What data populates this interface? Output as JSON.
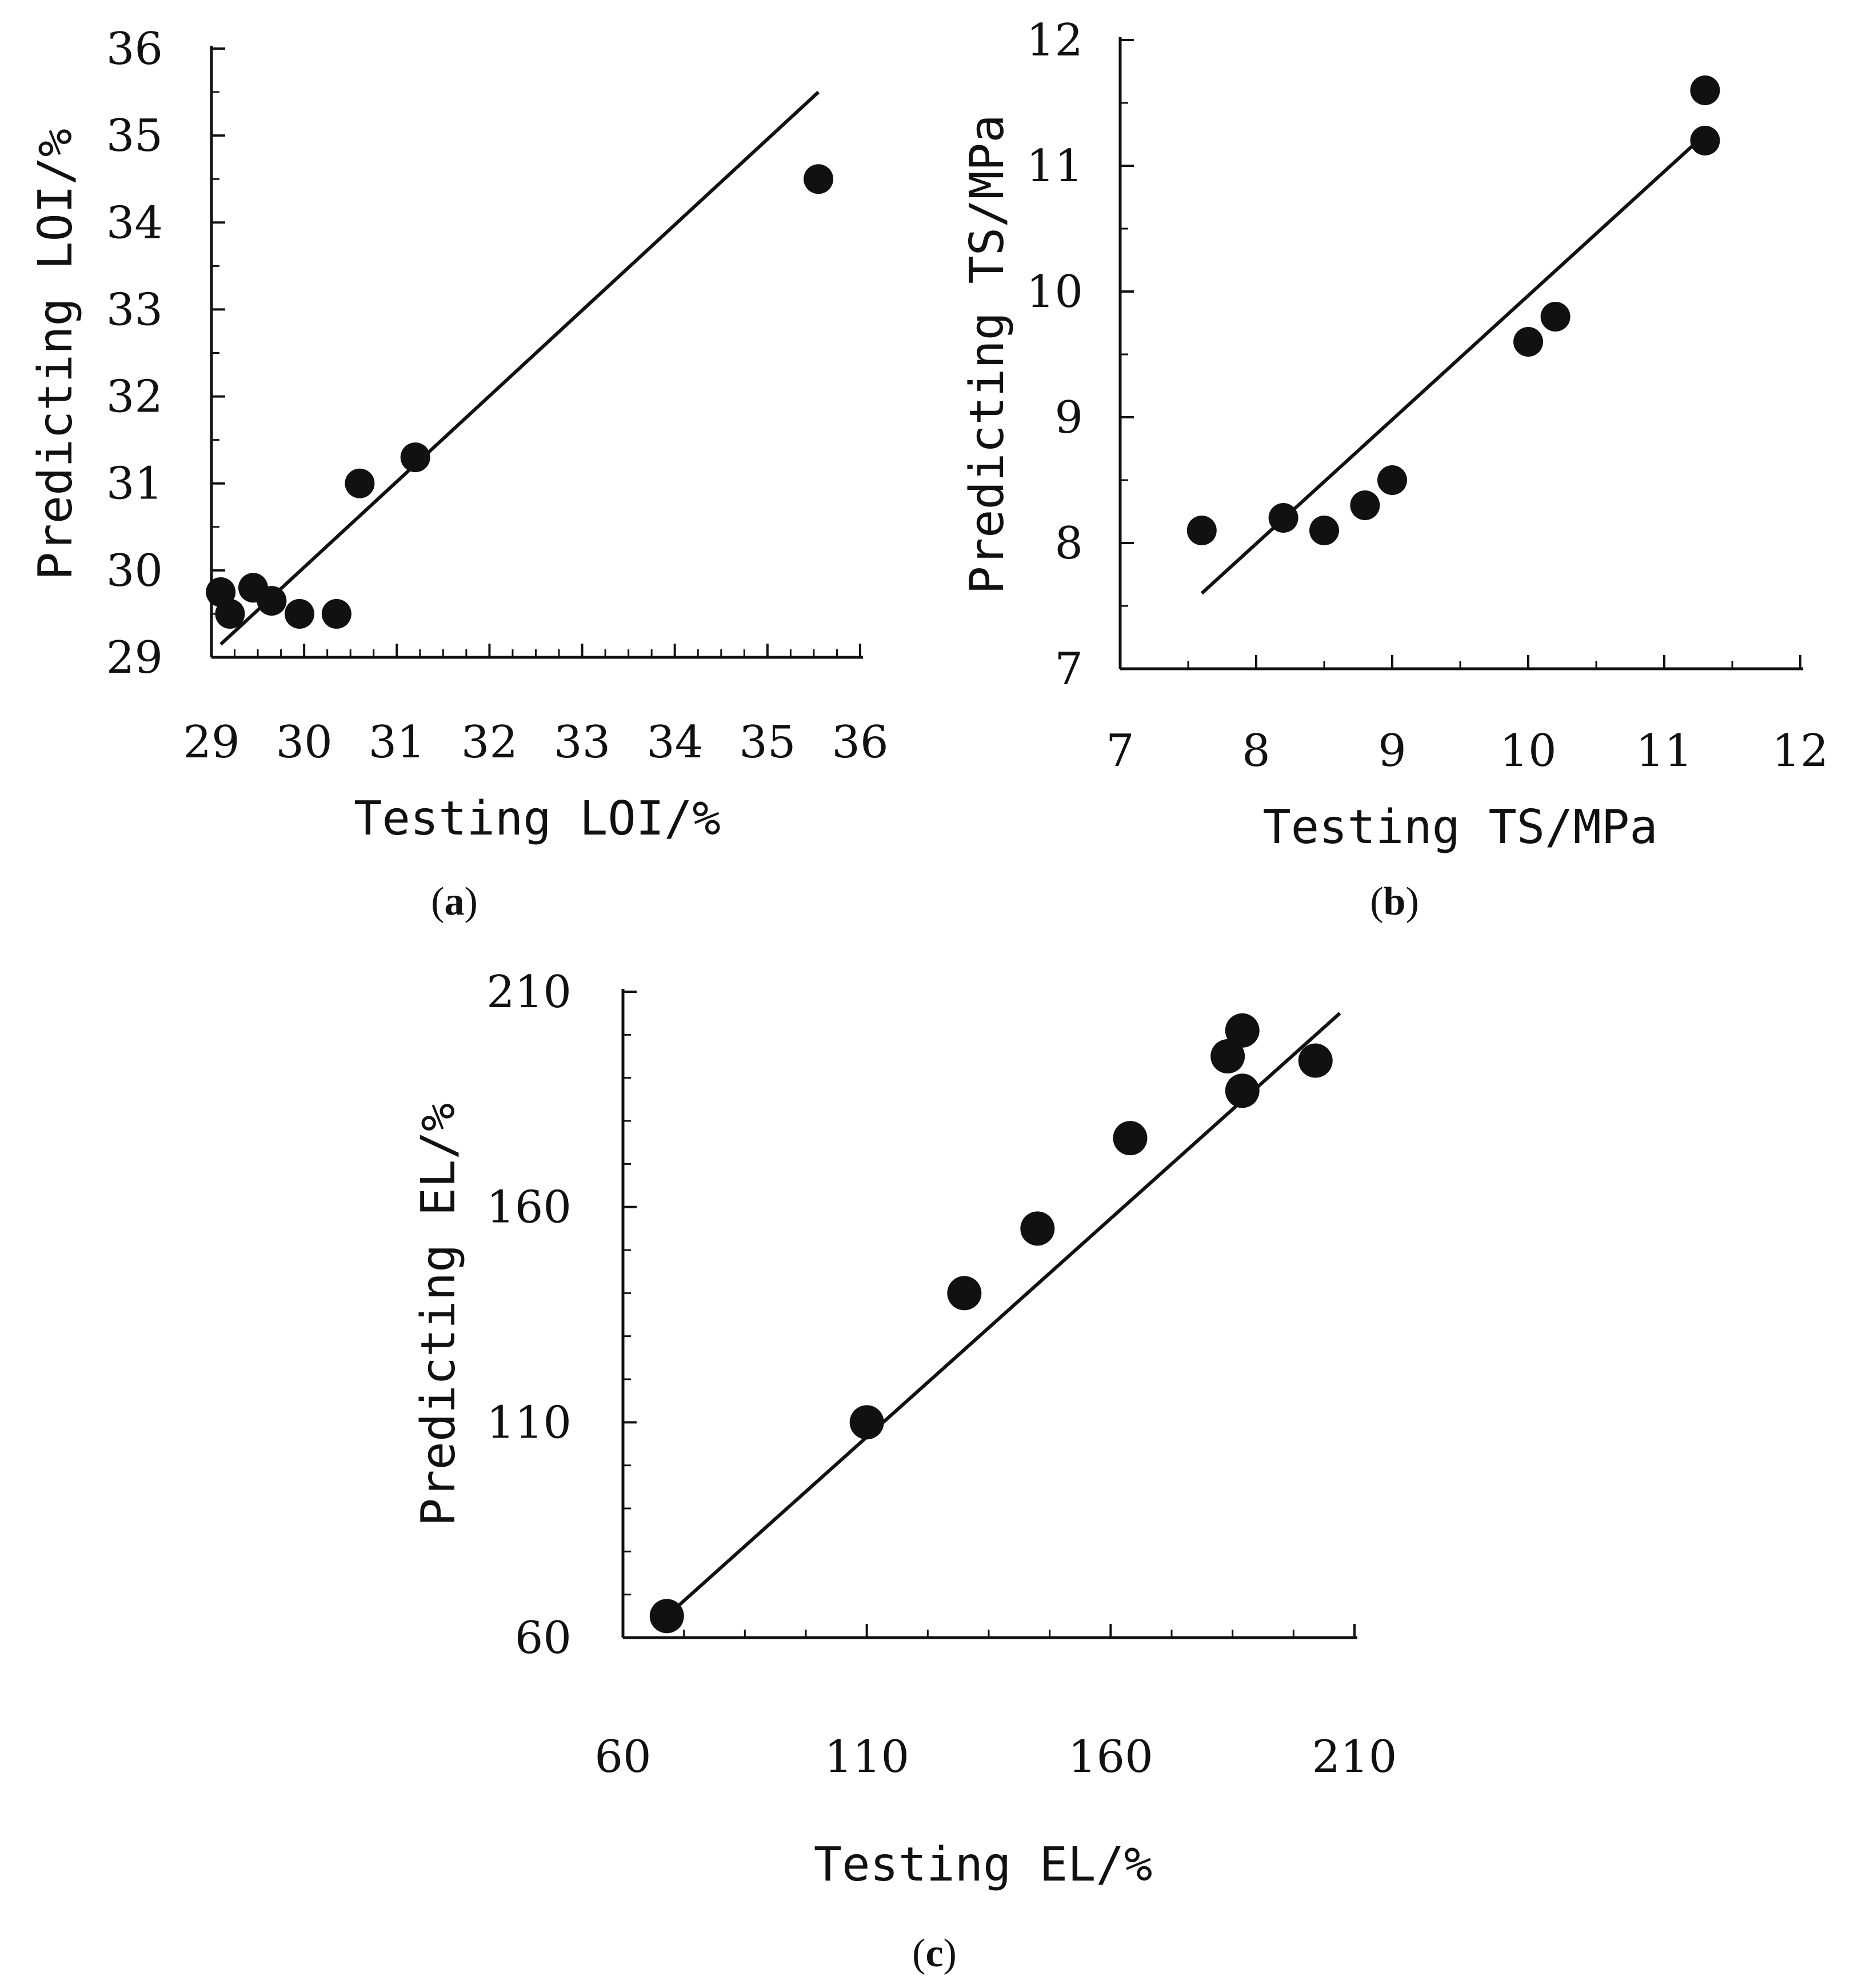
{
  "chart_data": [
    {
      "panel_id": "a",
      "type": "scatter",
      "panel_label": "a",
      "xlabel": "Testing LOI/%",
      "ylabel": "Predicting LOI/%",
      "xlim": [
        29,
        36
      ],
      "ylim": [
        29,
        36
      ],
      "xticks": [
        "29",
        "30",
        "31",
        "32",
        "33",
        "34",
        "35",
        "36"
      ],
      "yticks": [
        "29",
        "30",
        "31",
        "32",
        "33",
        "34",
        "35",
        "36"
      ],
      "fit_line": [
        [
          29.1,
          29.15
        ],
        [
          35.55,
          35.5
        ]
      ],
      "points": [
        {
          "x": 29.1,
          "y": 29.75
        },
        {
          "x": 29.2,
          "y": 29.5
        },
        {
          "x": 29.45,
          "y": 29.8
        },
        {
          "x": 29.65,
          "y": 29.65
        },
        {
          "x": 29.95,
          "y": 29.5
        },
        {
          "x": 30.35,
          "y": 29.5
        },
        {
          "x": 30.6,
          "y": 31.0
        },
        {
          "x": 31.2,
          "y": 31.3
        },
        {
          "x": 35.55,
          "y": 34.5
        }
      ]
    },
    {
      "panel_id": "b",
      "type": "scatter",
      "panel_label": "b",
      "xlabel": "Testing TS/MPa",
      "ylabel": "Predicting TS/MPa",
      "xlim": [
        7,
        12
      ],
      "ylim": [
        7,
        12
      ],
      "xticks": [
        "7",
        "8",
        "9",
        "10",
        "11",
        "12"
      ],
      "yticks": [
        "7",
        "8",
        "9",
        "10",
        "11",
        "12"
      ],
      "fit_line": [
        [
          7.6,
          7.6
        ],
        [
          11.3,
          11.25
        ]
      ],
      "points": [
        {
          "x": 7.6,
          "y": 8.1
        },
        {
          "x": 8.2,
          "y": 8.2
        },
        {
          "x": 8.5,
          "y": 8.1
        },
        {
          "x": 8.8,
          "y": 8.3
        },
        {
          "x": 9.0,
          "y": 8.5
        },
        {
          "x": 10.0,
          "y": 9.6
        },
        {
          "x": 10.2,
          "y": 9.8
        },
        {
          "x": 11.3,
          "y": 11.6
        },
        {
          "x": 11.3,
          "y": 11.2
        }
      ]
    },
    {
      "panel_id": "c",
      "type": "scatter",
      "panel_label": "c",
      "xlabel": "Testing EL/%",
      "ylabel": "Predicting EL/%",
      "xlim": [
        60,
        210
      ],
      "ylim": [
        60,
        210
      ],
      "xticks": [
        "60",
        "110",
        "160",
        "210"
      ],
      "yticks": [
        "60",
        "110",
        "160",
        "210"
      ],
      "fit_line": [
        [
          69,
          65
        ],
        [
          207,
          205
        ]
      ],
      "points": [
        {
          "x": 69,
          "y": 65
        },
        {
          "x": 110,
          "y": 110
        },
        {
          "x": 130,
          "y": 140
        },
        {
          "x": 145,
          "y": 155
        },
        {
          "x": 164,
          "y": 176
        },
        {
          "x": 184,
          "y": 195
        },
        {
          "x": 187,
          "y": 201
        },
        {
          "x": 187,
          "y": 187
        },
        {
          "x": 202,
          "y": 194
        }
      ]
    }
  ]
}
